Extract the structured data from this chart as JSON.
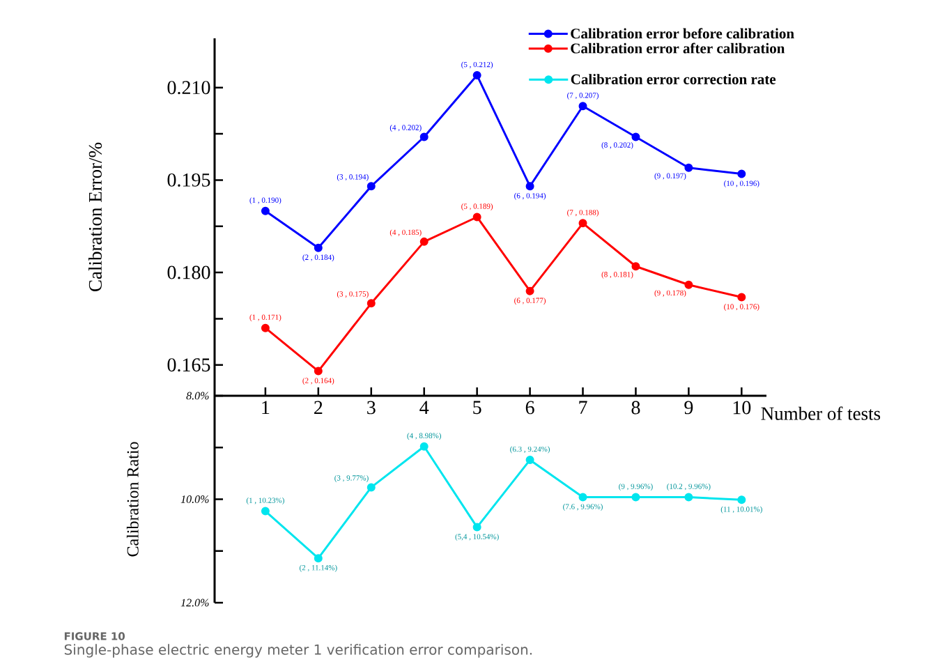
{
  "chart_data": [
    {
      "type": "line",
      "categories": [
        "1",
        "2",
        "3",
        "4",
        "5",
        "6",
        "7",
        "8",
        "9",
        "10"
      ],
      "xlabel": "Number of tests",
      "ylabel": "Calibration Error/%",
      "ylim": [
        0.16,
        0.218
      ],
      "yticks": [
        0.165,
        {
          "value": 0.1725,
          "label": null
        },
        {
          "value": 0.18,
          "label": "0.180"
        },
        {
          "value": 0.1875,
          "label": null
        },
        0.195,
        {
          "value": 0.2025,
          "label": null
        },
        {
          "value": 0.21,
          "label": "0.210"
        }
      ],
      "marker": "circle",
      "line_style": "solid",
      "legend": "top right",
      "annotations": [
        "FIGURE 10",
        "Single-phase electric energy meter 1 verification error comparison."
      ],
      "series": [
        {
          "name": "Calibration error before calibration",
          "color": "#0000ff",
          "values": [
            0.19,
            0.184,
            0.194,
            0.202,
            0.212,
            0.194,
            0.207,
            0.202,
            0.197,
            0.196
          ],
          "value_labels": [
            "(1 , 0.190)",
            "(2 , 0.184)",
            "(3 , 0.194)",
            "(4 , 0.202)",
            "(5 , 0.212)",
            "(6 , 0.194)",
            "(7 , 0.207)",
            "(8 , 0.202)",
            "(9 , 0.197)",
            "(10 , 0.196)"
          ]
        },
        {
          "name": "Calibration error after calibration",
          "color": "#ff0000",
          "values": [
            0.171,
            0.164,
            0.175,
            0.185,
            0.189,
            0.177,
            0.188,
            0.181,
            0.178,
            0.176
          ],
          "value_labels": [
            "(1 , 0.171)",
            "(2 , 0.164)",
            "(3 , 0.175)",
            "(4 , 0.185)",
            "(5 , 0.189)",
            "(6 , 0.177)",
            "(7 , 0.188)",
            "(8 , 0.181)",
            "(9 , 0.178)",
            "(10 , 0.176)"
          ]
        }
      ]
    },
    {
      "type": "line",
      "categories": [
        null,
        null,
        null,
        null,
        null,
        null,
        null,
        null,
        null,
        null
      ],
      "ylabel": "Calibration Ratio",
      "ylim": [
        12,
        8
      ],
      "yticks": [
        {
          "value": 8,
          "label": "8.0%"
        },
        {
          "value": 10,
          "label": "10.0%"
        },
        {
          "value": 12,
          "label": "12.0%"
        }
      ],
      "tick_labels": "y",
      "marker": "circle",
      "line_style": "solid",
      "legend": "top right",
      "series": [
        {
          "name": "Calibration error correction rate",
          "color": "#00e5ee",
          "values": [
            10.23,
            11.14,
            9.77,
            8.98,
            10.54,
            9.24,
            9.96,
            9.96,
            9.96,
            10.01
          ],
          "value_labels": [
            "(1 , 10.23%)",
            "(2 , 11.14%)",
            "(3 , 9.77%)",
            "(4 , 8.98%)",
            "(5,4 , 10.54%)",
            "(6.3 , 9.24%)",
            "(7.6 , 9.96%)",
            "(9 , 9.96%)",
            "(10.2 , 9.96%)",
            "(11 , 10.01%)"
          ]
        }
      ]
    }
  ]
}
